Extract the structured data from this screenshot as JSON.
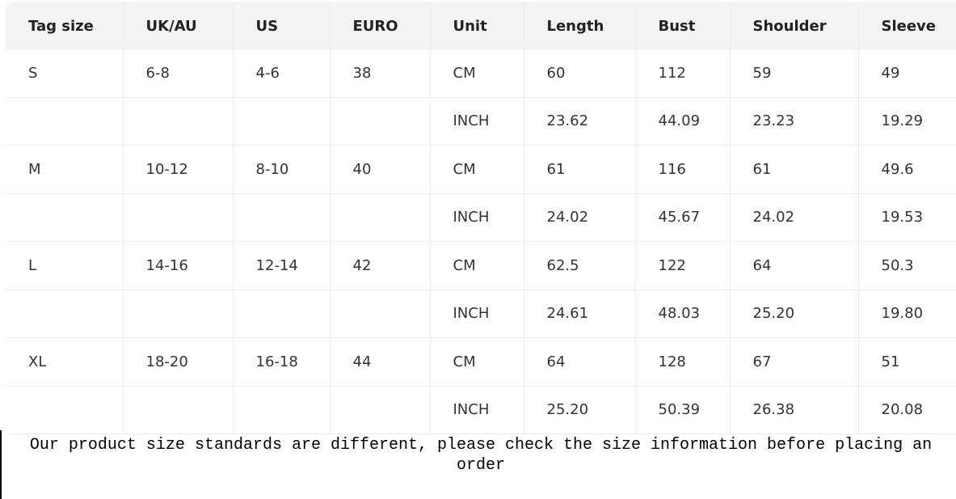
{
  "headers": [
    "Tag size",
    "UK/AU",
    "US",
    "EURO",
    "Unit",
    "Length",
    "Bust",
    "Shoulder",
    "Sleeve"
  ],
  "rows": [
    [
      "S",
      "6-8",
      "4-6",
      "38",
      "CM",
      "60",
      "112",
      "59",
      "49"
    ],
    [
      "",
      "",
      "",
      "",
      "INCH",
      "23.62",
      "44.09",
      "23.23",
      "19.29"
    ],
    [
      "M",
      "10-12",
      "8-10",
      "40",
      "CM",
      "61",
      "116",
      "61",
      "49.6"
    ],
    [
      "",
      "",
      "",
      "",
      "INCH",
      "24.02",
      "45.67",
      "24.02",
      "19.53"
    ],
    [
      "L",
      "14-16",
      "12-14",
      "42",
      "CM",
      "62.5",
      "122",
      "64",
      "50.3"
    ],
    [
      "",
      "",
      "",
      "",
      "INCH",
      "24.61",
      "48.03",
      "25.20",
      "19.80"
    ],
    [
      "XL",
      "18-20",
      "16-18",
      "44",
      "CM",
      "64",
      "128",
      "67",
      "51"
    ],
    [
      "",
      "",
      "",
      "",
      "INCH",
      "25.20",
      "50.39",
      "26.38",
      "20.08"
    ]
  ],
  "caption": "Our product size standards are different, please check the size information before placing an order"
}
